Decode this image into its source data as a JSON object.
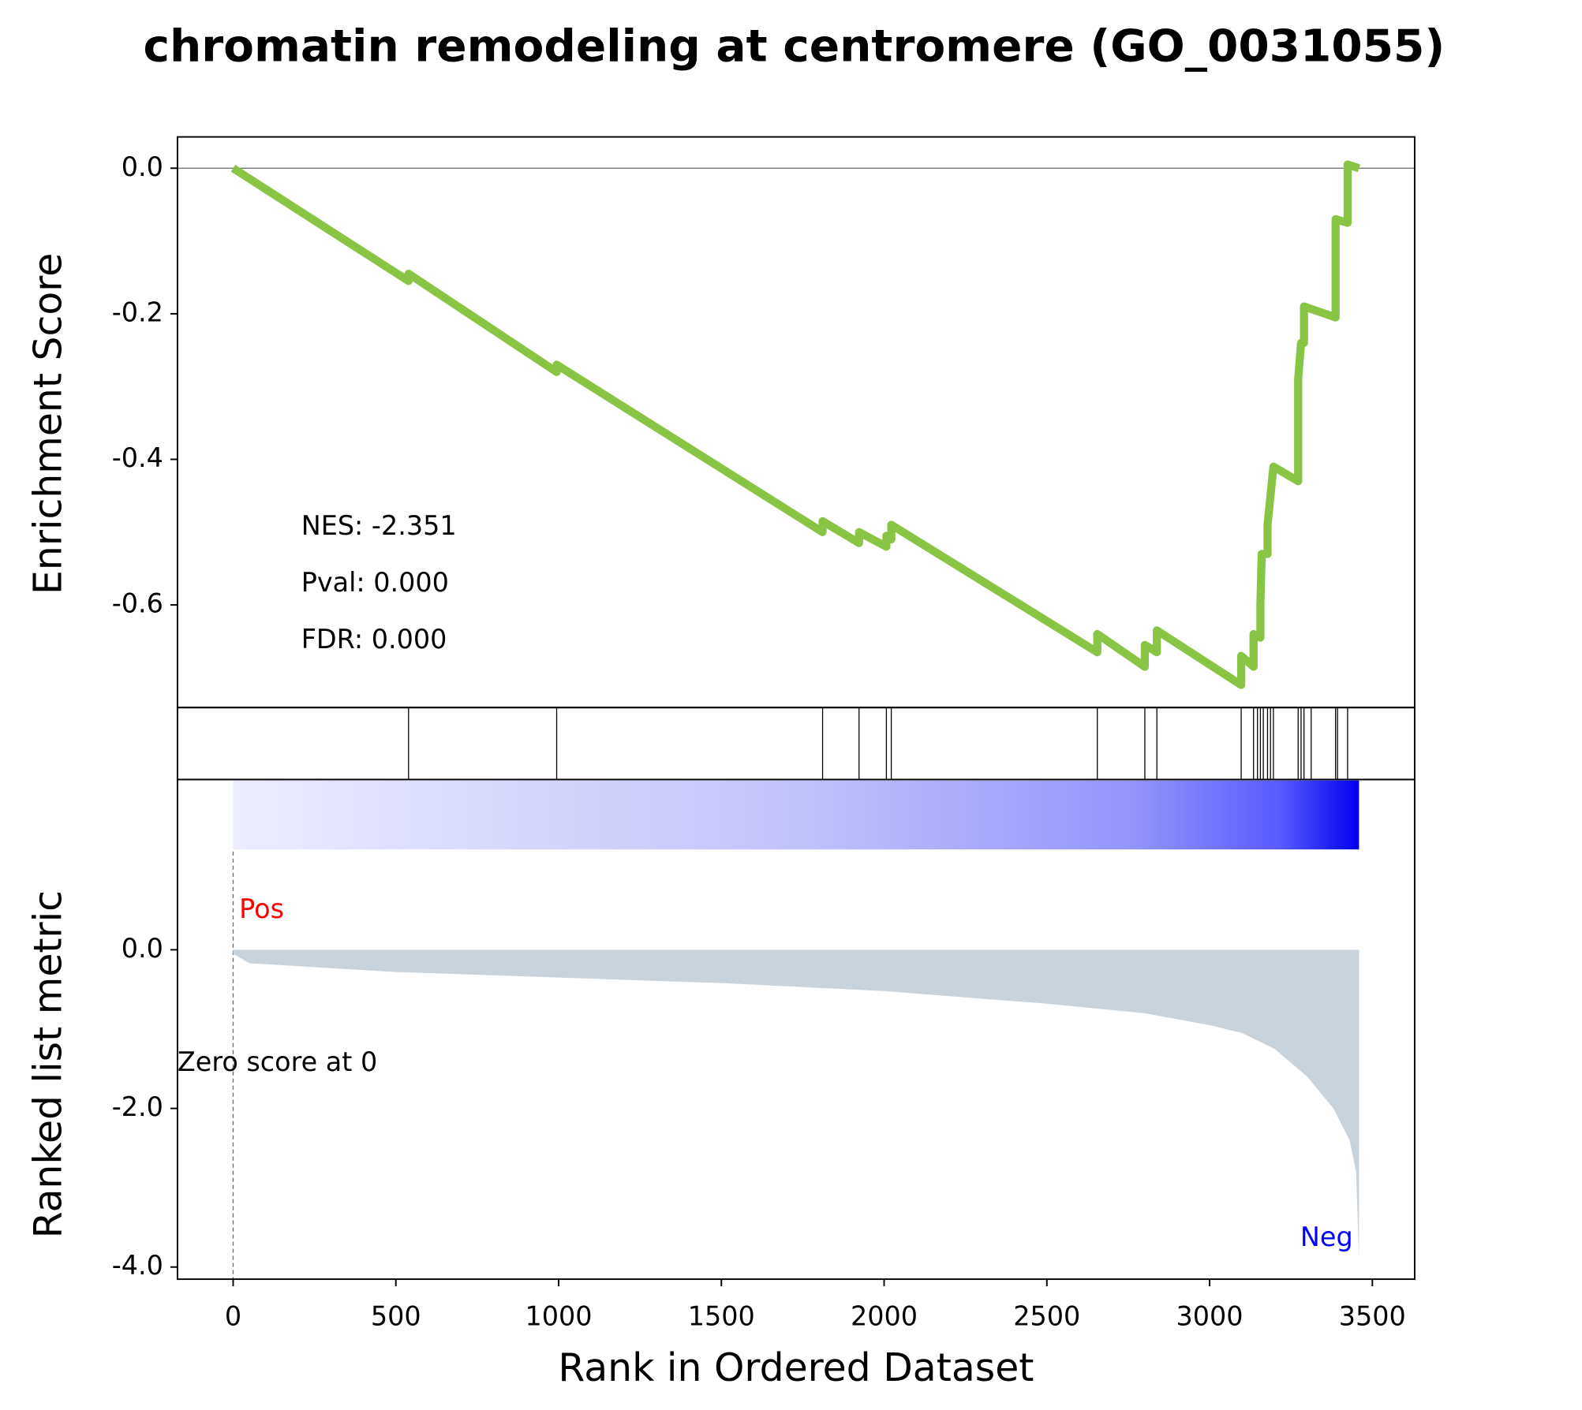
{
  "chart_data": [
    {
      "type": "line",
      "title": "chromatin remodeling at centromere (GO_0031055)",
      "ylabel": "Enrichment Score",
      "color": "#88c544",
      "x": [
        0,
        539,
        539,
        994,
        994,
        1811,
        1811,
        1923,
        1923,
        2007,
        2007,
        2022,
        2022,
        2655,
        2655,
        2801,
        2801,
        2838,
        2838,
        3097,
        3097,
        3135,
        3135,
        3156,
        3156,
        3160,
        3178,
        3178,
        3187,
        3196,
        3272,
        3272,
        3281,
        3290,
        3290,
        3387,
        3387,
        3424,
        3424,
        3459
      ],
      "values": [
        0,
        -0.155,
        -0.145,
        -0.28,
        -0.27,
        -0.5,
        -0.485,
        -0.515,
        -0.5,
        -0.52,
        -0.505,
        -0.51,
        -0.49,
        -0.665,
        -0.64,
        -0.685,
        -0.655,
        -0.665,
        -0.635,
        -0.71,
        -0.67,
        -0.685,
        -0.64,
        -0.645,
        -0.6,
        -0.53,
        -0.53,
        -0.49,
        -0.45,
        -0.41,
        -0.43,
        -0.29,
        -0.24,
        -0.24,
        -0.19,
        -0.205,
        -0.07,
        -0.075,
        0.005,
        0
      ],
      "hits": [
        539,
        994,
        1811,
        1923,
        2007,
        2022,
        2655,
        2801,
        2838,
        3097,
        3135,
        3147,
        3156,
        3165,
        3178,
        3187,
        3196,
        3272,
        3281,
        3290,
        3312,
        3387,
        3393,
        3424
      ],
      "xlim": [
        -171,
        3630
      ],
      "ylim": [
        -0.741,
        0.043
      ],
      "yticks": [
        {
          "value": 0,
          "label": "0.0"
        },
        {
          "value": -0.2,
          "label": "-0.2"
        },
        {
          "value": -0.4,
          "label": "-0.4"
        },
        {
          "value": -0.6,
          "label": "-0.6"
        }
      ],
      "annotations": [
        "NES: -2.351",
        "Pval: 0.000",
        "FDR: 0.000"
      ]
    },
    {
      "type": "area",
      "ylabel": "Ranked list metric",
      "xlabel": "Rank in Ordered Dataset",
      "color": "#c9d3dc",
      "x": [
        0,
        0,
        50,
        500,
        1000,
        1500,
        2000,
        2500,
        2800,
        3000,
        3100,
        3200,
        3300,
        3380,
        3430,
        3450,
        3459
      ],
      "values": [
        0,
        -0.05,
        -0.17,
        -0.28,
        -0.35,
        -0.42,
        -0.52,
        -0.68,
        -0.8,
        -0.95,
        -1.05,
        -1.25,
        -1.6,
        -2.0,
        -2.4,
        -2.8,
        -3.9
      ],
      "xlim": [
        -171,
        3630
      ],
      "ylim": [
        -4.153,
        2.147
      ],
      "xticks": [
        0,
        500,
        1000,
        1500,
        2000,
        2500,
        3000,
        3500
      ],
      "yticks": [
        {
          "value": 0,
          "label": "0.0"
        },
        {
          "value": -2,
          "label": "-2.0"
        },
        {
          "value": -4,
          "label": "-4.0"
        }
      ],
      "pos_label": "Pos",
      "neg_label": "Neg",
      "zero_label": "Zero score at 0"
    }
  ]
}
